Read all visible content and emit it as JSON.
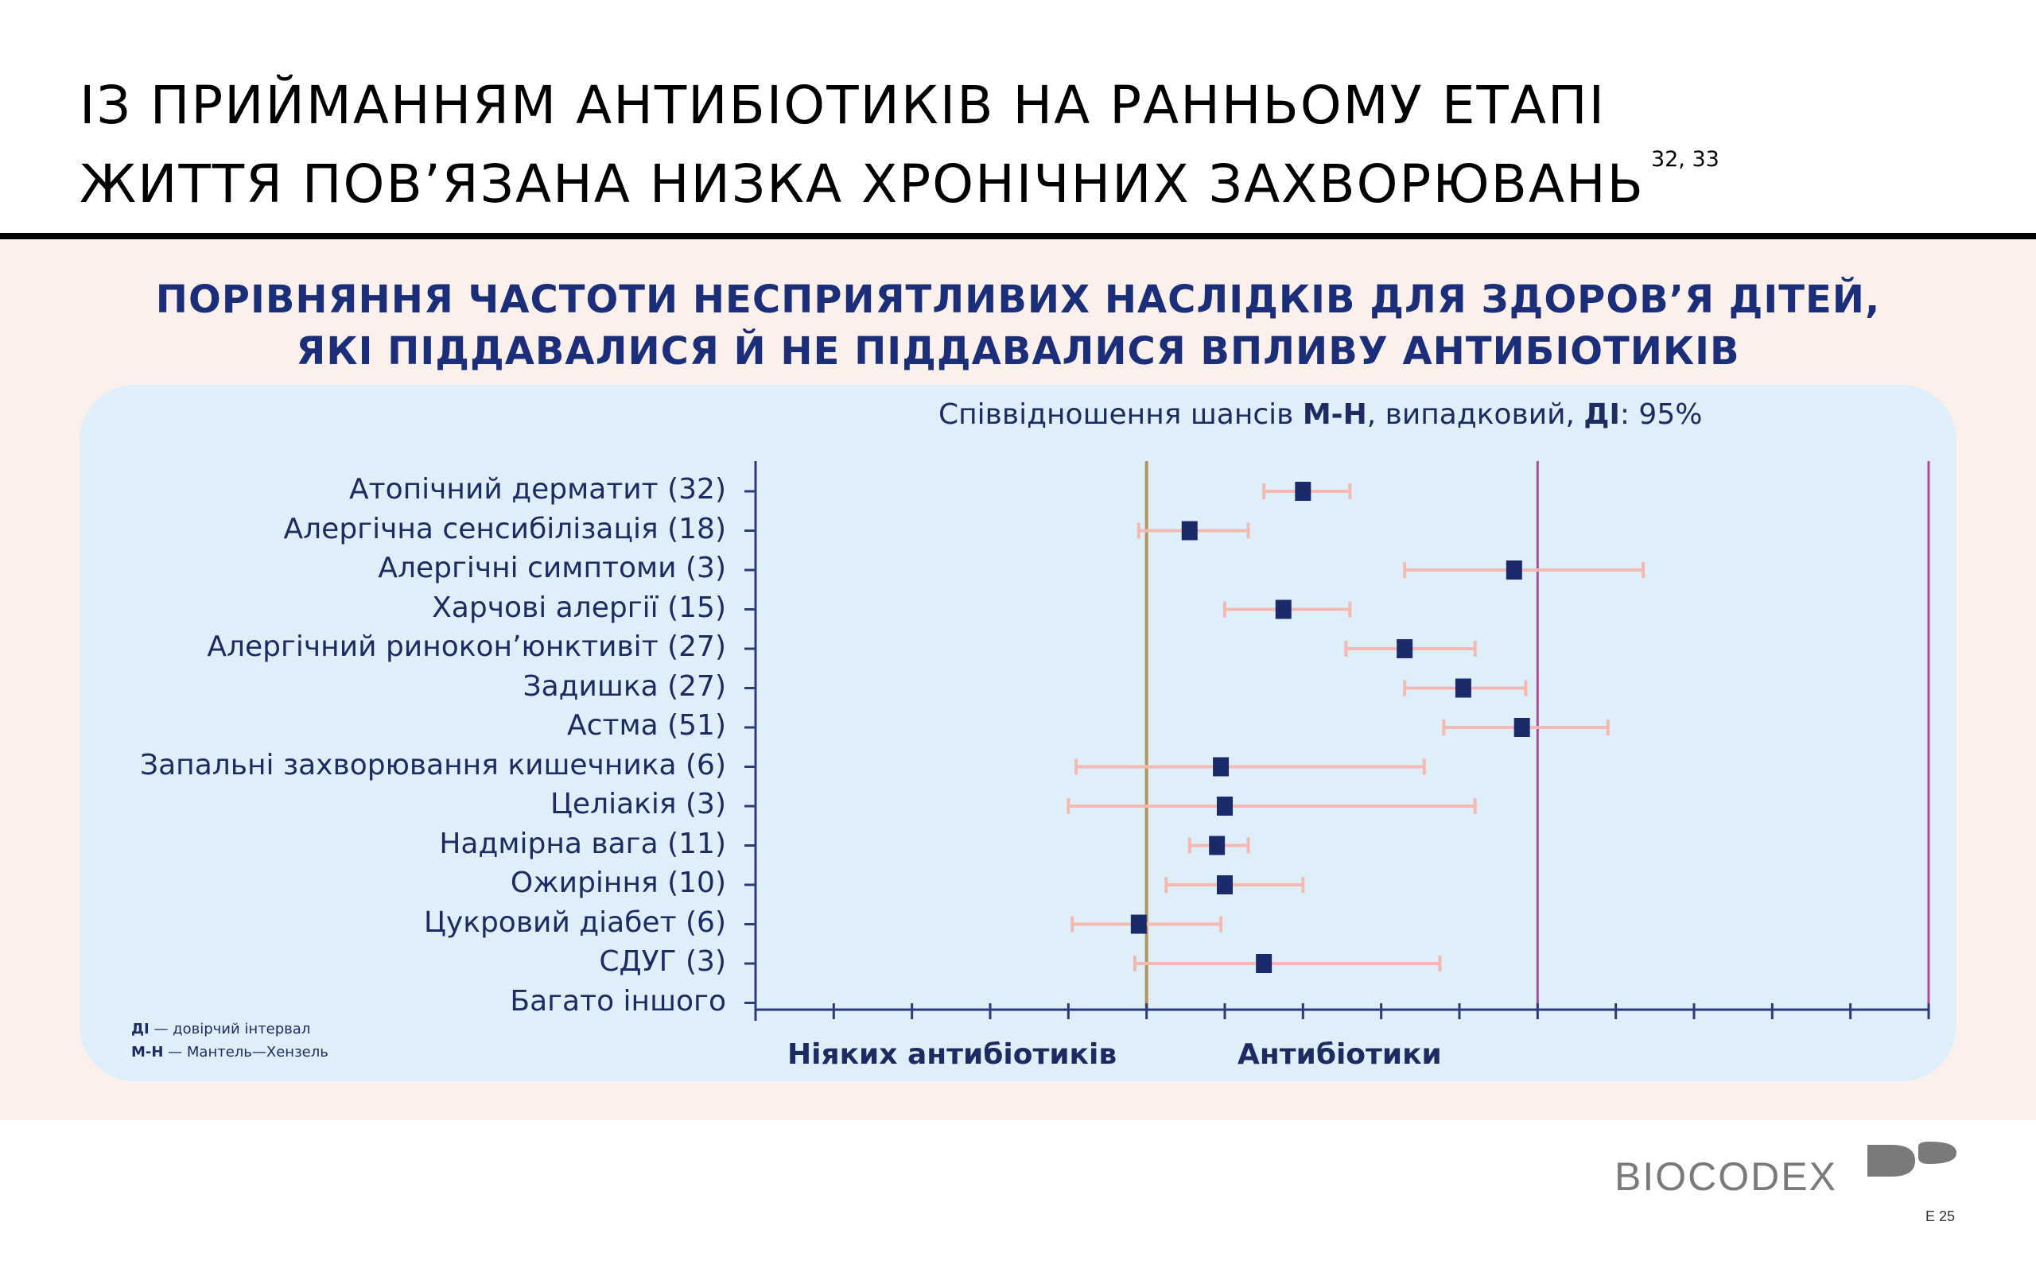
{
  "page": {
    "title_line1": "ІЗ ПРИЙМАННЯМ АНТИБІОТИКІВ НА РАННЬОМУ ЕТАПІ",
    "title_line2": "ЖИТТЯ ПОВ’ЯЗАНА НИЗКА ХРОНІЧНИХ ЗАХВОРЮВАНЬ",
    "title_refs": "32, 33",
    "heading_line1": "ПОРІВНЯННЯ ЧАСТОТИ НЕСПРИЯТЛИВИХ НАСЛІДКІВ ДЛЯ ЗДОРОВ’Я ДІТЕЙ,",
    "heading_line2": "ЯКІ ПІДДАВАЛИСЯ Й НЕ ПІДДАВАЛИСЯ ВПЛИВУ АНТИБІОТИКІВ",
    "subtitle_prefix": "Співвідношення шансів ",
    "subtitle_mh": "М-Н",
    "subtitle_mid": ", випадковий, ",
    "subtitle_ci": "ДІ",
    "subtitle_suffix": ": 95%",
    "left_label": "Ніяких антибіотиків",
    "right_label": "Антибіотики",
    "legend_ci_abbr": "ДІ",
    "legend_ci_text": " — довірчий інтервал",
    "legend_mh_abbr": "М-Н",
    "legend_mh_text": " — Мантель—Хензель",
    "logo_text": "BIOCODEX",
    "page_code": "E 25"
  },
  "colors": {
    "title": "#000000",
    "heading": "#1a2e7a",
    "text": "#1e2a62",
    "band": "#fcf0ed",
    "panel": "#dfeffa",
    "marker": "#1b2a6b",
    "ci": "#f4b9b0",
    "reference_line": "#b8925a",
    "threshold_line": "#b04a9a",
    "axis": "#2d3a78"
  },
  "chart_data": {
    "type": "forest",
    "grid": false,
    "xlim": [
      0,
      3
    ],
    "reference_value": 1,
    "threshold_lines": [
      2,
      3
    ],
    "x_ticks": [
      0,
      0.2,
      0.4,
      0.6,
      0.8,
      1,
      1.2,
      1.4,
      1.6,
      1.8,
      2,
      2.2,
      2.4,
      2.6,
      2.8,
      3
    ],
    "rows": [
      {
        "label": "Атопічний дерматит (32)",
        "or": 1.4,
        "ci": [
          1.3,
          1.52
        ]
      },
      {
        "label": "Алергічна сенсибілізація (18)",
        "or": 1.11,
        "ci": [
          0.98,
          1.26
        ]
      },
      {
        "label": "Алергічні симптоми (3)",
        "or": 1.94,
        "ci": [
          1.66,
          2.27
        ]
      },
      {
        "label": "Харчові алергії (15)",
        "or": 1.35,
        "ci": [
          1.2,
          1.52
        ]
      },
      {
        "label": "Алергічний ринокон’юнктивіт (27)",
        "or": 1.66,
        "ci": [
          1.51,
          1.84
        ]
      },
      {
        "label": "Задишка (27)",
        "or": 1.81,
        "ci": [
          1.66,
          1.97
        ]
      },
      {
        "label": "Астма (51)",
        "or": 1.96,
        "ci": [
          1.76,
          2.18
        ]
      },
      {
        "label": "Запальні захворювання кишечника (6)",
        "or": 1.19,
        "ci": [
          0.82,
          1.71
        ]
      },
      {
        "label": "Целіакія (3)",
        "or": 1.2,
        "ci": [
          0.8,
          1.84
        ]
      },
      {
        "label": "Надмірна вага (11)",
        "or": 1.18,
        "ci": [
          1.11,
          1.26
        ]
      },
      {
        "label": "Ожиріння (10)",
        "or": 1.2,
        "ci": [
          1.05,
          1.4
        ]
      },
      {
        "label": "Цукровий діабет (6)",
        "or": 0.98,
        "ci": [
          0.81,
          1.19
        ]
      },
      {
        "label": "СДУГ (3)",
        "or": 1.3,
        "ci": [
          0.97,
          1.75
        ]
      },
      {
        "label": "Багато іншого",
        "or": null,
        "ci": null
      }
    ]
  }
}
